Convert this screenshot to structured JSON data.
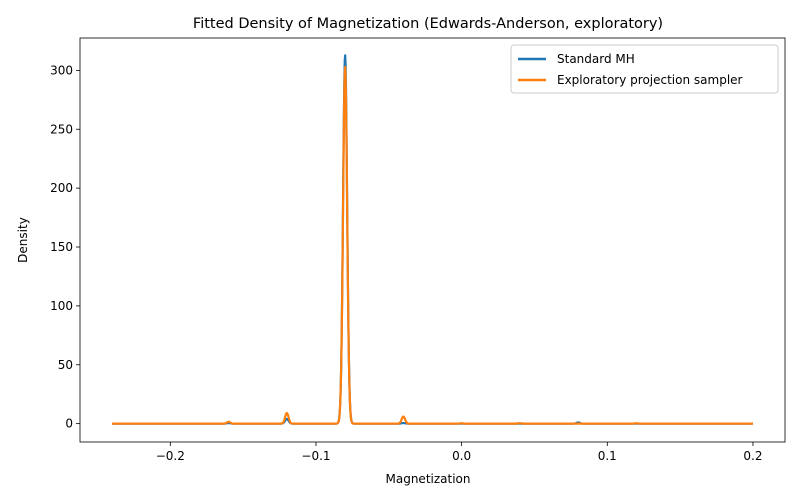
{
  "chart_data": {
    "type": "line",
    "title": "Fitted Density of Magnetization (Edwards-Anderson, exploratory)",
    "xlabel": "Magnetization",
    "ylabel": "Density",
    "xlim": [
      -0.262,
      0.222
    ],
    "ylim": [
      -15.6,
      327.5
    ],
    "xticks": [
      -0.2,
      -0.1,
      0.0,
      0.1,
      0.2
    ],
    "xtick_labels": [
      "−0.2",
      "−0.1",
      "0.0",
      "0.1",
      "0.2"
    ],
    "yticks": [
      0,
      50,
      100,
      150,
      200,
      250,
      300
    ],
    "ytick_labels": [
      "0",
      "50",
      "100",
      "150",
      "200",
      "250",
      "300"
    ],
    "grid": false,
    "legend_position": "top-right",
    "x_range": [
      -0.24,
      0.2
    ],
    "series": [
      {
        "name": "Standard MH",
        "color": "#1f77b4",
        "peaks": [
          {
            "center": -0.16,
            "height": 0.5,
            "width": 0.0012
          },
          {
            "center": -0.12,
            "height": 4,
            "width": 0.0012
          },
          {
            "center": -0.08,
            "height": 313,
            "width": 0.0014
          },
          {
            "center": -0.04,
            "height": 0.5,
            "width": 0.0012
          },
          {
            "center": 0.08,
            "height": 1.0,
            "width": 0.0012
          }
        ]
      },
      {
        "name": "Exploratory projection sampler",
        "color": "#ff7f0e",
        "peaks": [
          {
            "center": -0.16,
            "height": 1.5,
            "width": 0.0012
          },
          {
            "center": -0.12,
            "height": 9,
            "width": 0.0012
          },
          {
            "center": -0.08,
            "height": 303,
            "width": 0.0014
          },
          {
            "center": -0.04,
            "height": 6,
            "width": 0.0012
          },
          {
            "center": 0.0,
            "height": 0.3,
            "width": 0.0012
          },
          {
            "center": 0.04,
            "height": 0.4,
            "width": 0.0012
          },
          {
            "center": 0.12,
            "height": 0.3,
            "width": 0.0012
          }
        ]
      }
    ]
  }
}
